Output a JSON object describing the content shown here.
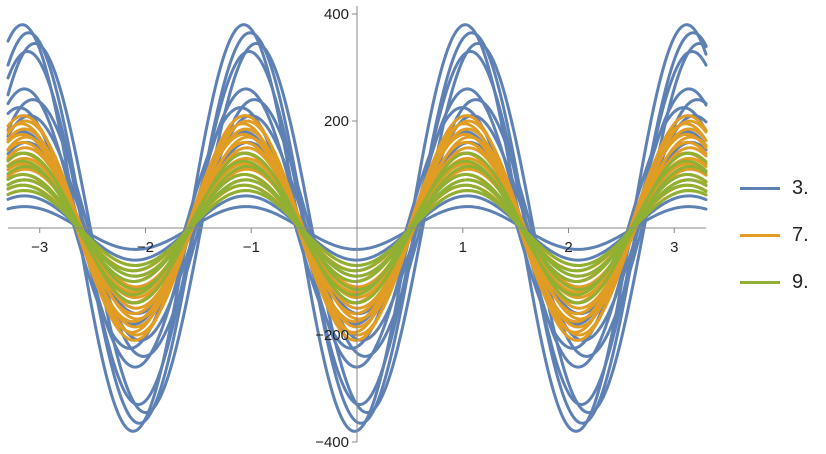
{
  "chart_data": {
    "type": "line",
    "title": "",
    "xlabel": "",
    "ylabel": "",
    "xlim": [
      -3.3,
      3.3
    ],
    "ylim": [
      -400,
      400
    ],
    "x_ticks": [
      -3,
      -2,
      -1,
      1,
      2,
      3
    ],
    "y_ticks": [
      -400,
      -200,
      200,
      400
    ],
    "x_tick_labels": [
      "−3",
      "−2",
      "−1",
      "1",
      "2",
      "3"
    ],
    "y_tick_labels": [
      "−400",
      "−200",
      "200",
      "400"
    ],
    "grid": false,
    "legend_position": "right",
    "curve_model": "y = amplitude * sin(3*(x - shift)) + offset",
    "series": [
      {
        "name": "3.",
        "color": "#5e81b5",
        "curves": [
          {
            "amplitude": 380,
            "shift": 0.5,
            "offset": 0
          },
          {
            "amplitude": 365,
            "shift": 0.56,
            "offset": 0
          },
          {
            "amplitude": 345,
            "shift": 0.62,
            "offset": 0
          },
          {
            "amplitude": 330,
            "shift": 0.55,
            "offset": 0
          },
          {
            "amplitude": 260,
            "shift": 0.52,
            "offset": 0
          },
          {
            "amplitude": 240,
            "shift": 0.6,
            "offset": 0
          },
          {
            "amplitude": 225,
            "shift": 0.47,
            "offset": 0
          },
          {
            "amplitude": 210,
            "shift": 0.57,
            "offset": 0
          },
          {
            "amplitude": 180,
            "shift": 0.5,
            "offset": 0
          },
          {
            "amplitude": 160,
            "shift": 0.54,
            "offset": 0
          },
          {
            "amplitude": 140,
            "shift": 0.5,
            "offset": 0
          },
          {
            "amplitude": 90,
            "shift": 0.52,
            "offset": 0
          },
          {
            "amplitude": 60,
            "shift": 0.52,
            "offset": 0
          },
          {
            "amplitude": 40,
            "shift": 0.52,
            "offset": 0
          }
        ]
      },
      {
        "name": "7.",
        "color": "#e19c24",
        "curves": [
          {
            "amplitude": 210,
            "shift": 0.51,
            "offset": 0
          },
          {
            "amplitude": 200,
            "shift": 0.53,
            "offset": 0
          },
          {
            "amplitude": 195,
            "shift": 0.49,
            "offset": 0
          },
          {
            "amplitude": 185,
            "shift": 0.52,
            "offset": 0
          },
          {
            "amplitude": 175,
            "shift": 0.5,
            "offset": 0
          },
          {
            "amplitude": 170,
            "shift": 0.54,
            "offset": 0
          },
          {
            "amplitude": 160,
            "shift": 0.51,
            "offset": 0
          },
          {
            "amplitude": 150,
            "shift": 0.53,
            "offset": 0
          },
          {
            "amplitude": 140,
            "shift": 0.5,
            "offset": 0
          },
          {
            "amplitude": 130,
            "shift": 0.52,
            "offset": 0
          },
          {
            "amplitude": 120,
            "shift": 0.51,
            "offset": 0
          },
          {
            "amplitude": 110,
            "shift": 0.53,
            "offset": 0
          },
          {
            "amplitude": 100,
            "shift": 0.5,
            "offset": 0
          },
          {
            "amplitude": 90,
            "shift": 0.52,
            "offset": 0
          },
          {
            "amplitude": 80,
            "shift": 0.51,
            "offset": 0
          },
          {
            "amplitude": 70,
            "shift": 0.52,
            "offset": 0
          }
        ]
      },
      {
        "name": "9.",
        "color": "#8fb032",
        "curves": [
          {
            "amplitude": 140,
            "shift": 0.52,
            "offset": 0
          },
          {
            "amplitude": 125,
            "shift": 0.5,
            "offset": 0
          },
          {
            "amplitude": 115,
            "shift": 0.53,
            "offset": 0
          },
          {
            "amplitude": 100,
            "shift": 0.51,
            "offset": 0
          },
          {
            "amplitude": 90,
            "shift": 0.52,
            "offset": 0
          },
          {
            "amplitude": 80,
            "shift": 0.5,
            "offset": 0
          },
          {
            "amplitude": 70,
            "shift": 0.52,
            "offset": 0
          }
        ]
      }
    ]
  }
}
